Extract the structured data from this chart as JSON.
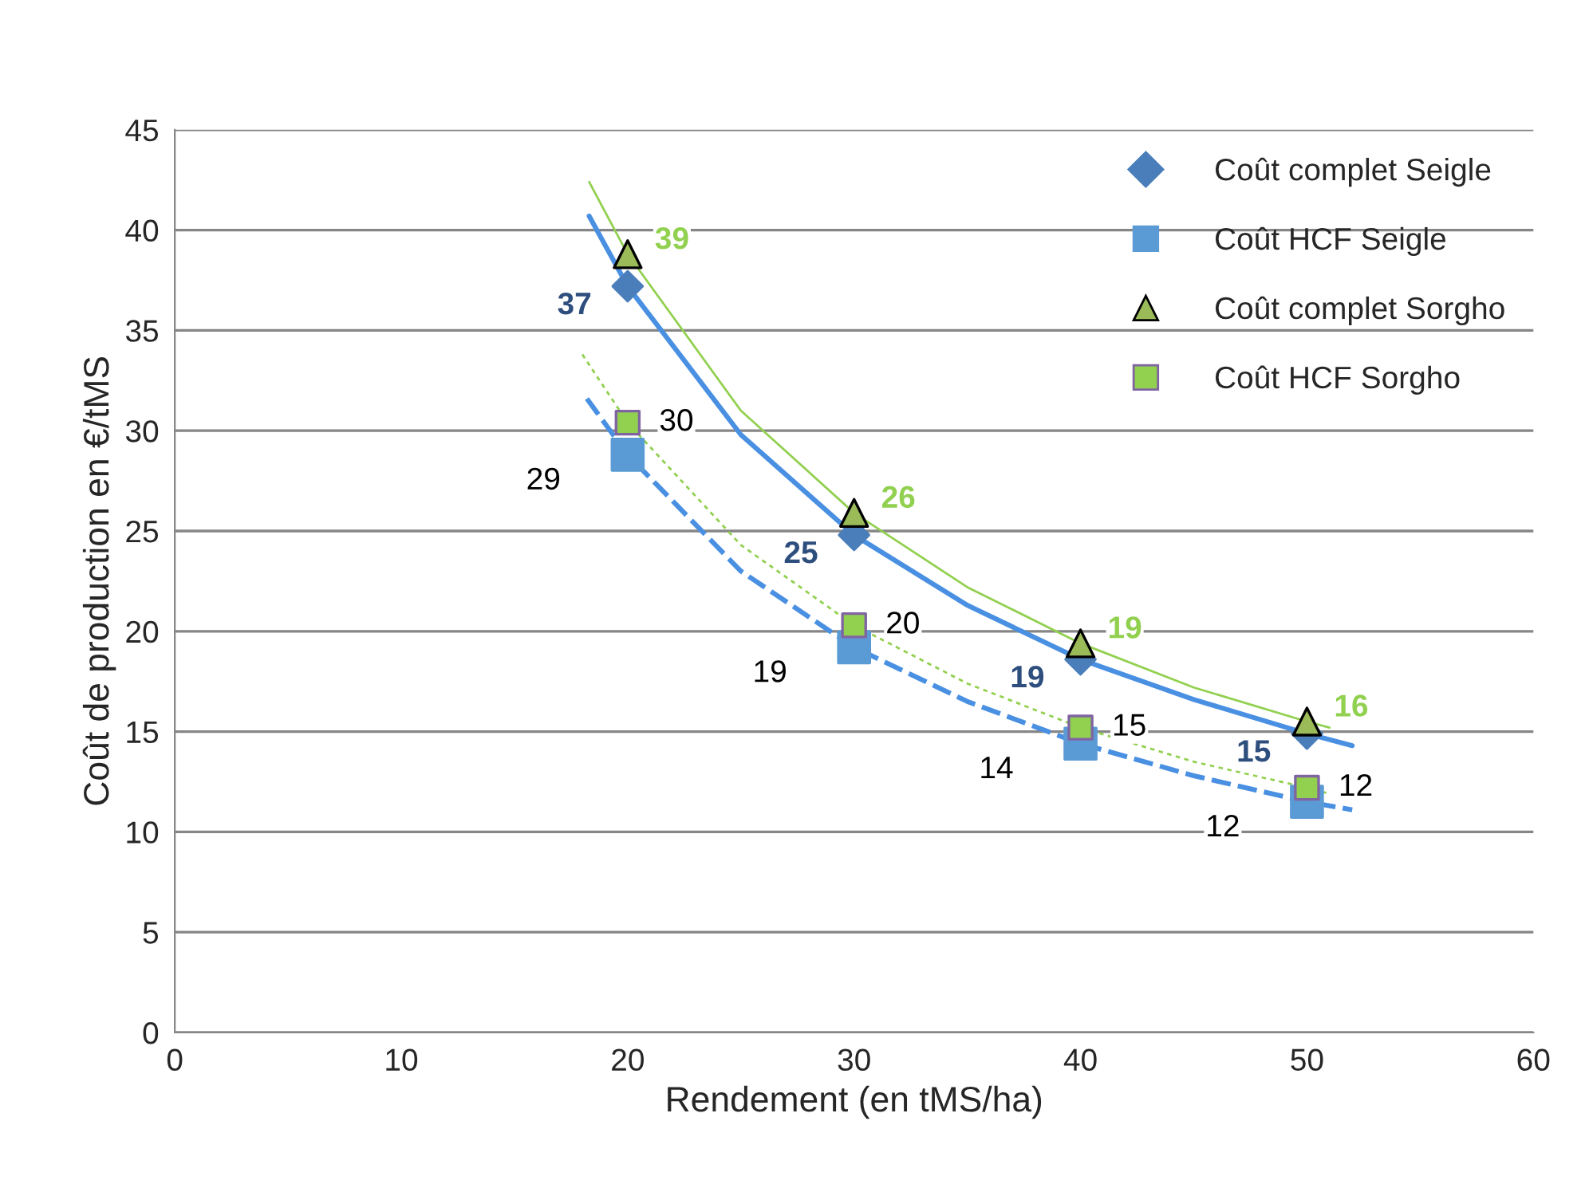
{
  "chart_data": {
    "type": "scatter",
    "xlabel": "Rendement (en tMS/ha)",
    "ylabel": "Coût de production en €/tMS",
    "xlim": [
      0,
      60
    ],
    "xticks": [
      0,
      10,
      20,
      30,
      40,
      50,
      60
    ],
    "ylim": [
      0,
      45
    ],
    "yticks": [
      0,
      5,
      10,
      15,
      20,
      25,
      30,
      35,
      40,
      45
    ],
    "grid": "y",
    "legend": "top right",
    "series": [
      {
        "name": "Coût complet Seigle",
        "marker": "diamond",
        "color": "#4a7ebb",
        "x": [
          20,
          30,
          40,
          50
        ],
        "values": [
          37.2,
          24.8,
          18.6,
          14.9
        ],
        "value_labels": [
          "37",
          "25",
          "19",
          "15"
        ]
      },
      {
        "name": "Coût HCF Seigle",
        "marker": "square",
        "color": "#5b9bd5",
        "x": [
          20,
          30,
          40,
          50
        ],
        "values": [
          28.8,
          19.2,
          14.4,
          11.5
        ],
        "value_labels": [
          "29",
          "19",
          "14",
          "12"
        ]
      },
      {
        "name": "Coût complet Sorgho",
        "marker": "triangle",
        "color": "#9bbb59",
        "x": [
          20,
          30,
          40,
          50
        ],
        "values": [
          38.8,
          25.9,
          19.4,
          15.5
        ],
        "value_labels": [
          "39",
          "26",
          "19",
          "16"
        ]
      },
      {
        "name": "Coût HCF Sorgho",
        "marker": "square",
        "color": "#92d050",
        "x": [
          20,
          30,
          40,
          50
        ],
        "values": [
          30.4,
          20.3,
          15.2,
          12.2
        ],
        "value_labels": [
          "30",
          "20",
          "15",
          "12"
        ]
      },
      {
        "type": "line",
        "line_style": "solid",
        "color": "#4a90e2",
        "x": [
          18.3,
          20,
          25,
          30,
          35,
          40,
          45,
          50,
          52
        ],
        "values": [
          40.7,
          37.2,
          29.8,
          24.8,
          21.3,
          18.6,
          16.6,
          14.9,
          14.3
        ]
      },
      {
        "type": "line",
        "line_style": "dashed",
        "color": "#4a90e2",
        "x": [
          18.2,
          20,
          25,
          30,
          35,
          40,
          45,
          50,
          52
        ],
        "values": [
          31.6,
          28.8,
          23.0,
          19.2,
          16.5,
          14.4,
          12.8,
          11.5,
          11.1
        ]
      },
      {
        "type": "line",
        "line_style": "solid",
        "color": "#92d050",
        "x": [
          18.3,
          20,
          25,
          30,
          35,
          40,
          45,
          50,
          51
        ],
        "values": [
          42.4,
          38.8,
          31.0,
          25.9,
          22.2,
          19.4,
          17.2,
          15.5,
          15.2
        ]
      },
      {
        "type": "line",
        "line_style": "dotted",
        "color": "#92d050",
        "x": [
          18,
          20,
          25,
          30,
          35,
          40,
          45,
          50,
          51
        ],
        "values": [
          33.8,
          30.4,
          24.3,
          20.3,
          17.4,
          15.2,
          13.5,
          12.2,
          11.9
        ]
      }
    ]
  }
}
